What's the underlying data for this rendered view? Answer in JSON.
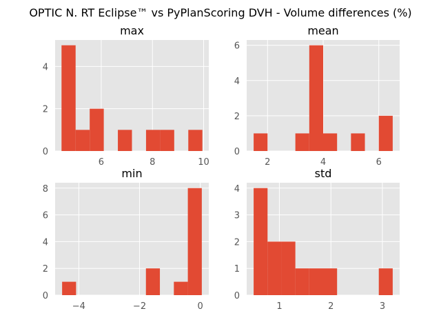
{
  "figure": {
    "title": "OPTIC N. RT Eclipse™ vs PyPlanScoring DVH - Volume differences (%)"
  },
  "colors": {
    "background": "#e5e5e5",
    "grid": "#ffffff",
    "bar": "#e24a33",
    "tick_text": "#555555"
  },
  "chart_data": [
    {
      "type": "bar",
      "title": "max",
      "bin_edges": [
        4.45,
        5.0,
        5.55,
        6.1,
        6.65,
        7.2,
        7.75,
        8.3,
        8.85,
        9.4,
        9.95
      ],
      "values": [
        5,
        1,
        2,
        0,
        1,
        0,
        1,
        1,
        0,
        1
      ],
      "xlim": [
        4.2,
        10.2
      ],
      "ylim": [
        0,
        5.25
      ],
      "xticks": [
        6,
        8,
        10
      ],
      "yticks": [
        0,
        2,
        4
      ],
      "grid": true
    },
    {
      "type": "bar",
      "title": "mean",
      "bin_edges": [
        1.5,
        2.0,
        2.5,
        3.0,
        3.5,
        4.0,
        4.5,
        5.0,
        5.5,
        6.0,
        6.5
      ],
      "values": [
        1,
        0,
        0,
        1,
        6,
        1,
        0,
        1,
        0,
        2
      ],
      "xlim": [
        1.25,
        6.75
      ],
      "ylim": [
        0,
        6.3
      ],
      "xticks": [
        2,
        4,
        6
      ],
      "yticks": [
        0,
        2,
        4,
        6
      ],
      "grid": true
    },
    {
      "type": "bar",
      "title": "min",
      "bin_edges": [
        -4.55,
        -4.09,
        -3.63,
        -3.17,
        -2.71,
        -2.25,
        -1.79,
        -1.33,
        -0.87,
        -0.41,
        0.05
      ],
      "values": [
        1,
        0,
        0,
        0,
        0,
        0,
        2,
        0,
        1,
        8
      ],
      "xlim": [
        -4.78,
        0.28
      ],
      "ylim": [
        0,
        8.4
      ],
      "xticks": [
        -4,
        -2,
        0
      ],
      "yticks": [
        0,
        2,
        4,
        6,
        8
      ],
      "grid": true
    },
    {
      "type": "bar",
      "title": "std",
      "bin_edges": [
        0.5,
        0.77,
        1.04,
        1.31,
        1.58,
        1.85,
        2.12,
        2.39,
        2.66,
        2.93,
        3.2
      ],
      "values": [
        4,
        2,
        2,
        1,
        1,
        1,
        0,
        0,
        0,
        1
      ],
      "xlim": [
        0.365,
        3.335
      ],
      "ylim": [
        0,
        4.2
      ],
      "xticks": [
        1,
        2,
        3
      ],
      "yticks": [
        0,
        1,
        2,
        3,
        4
      ],
      "grid": true
    }
  ]
}
